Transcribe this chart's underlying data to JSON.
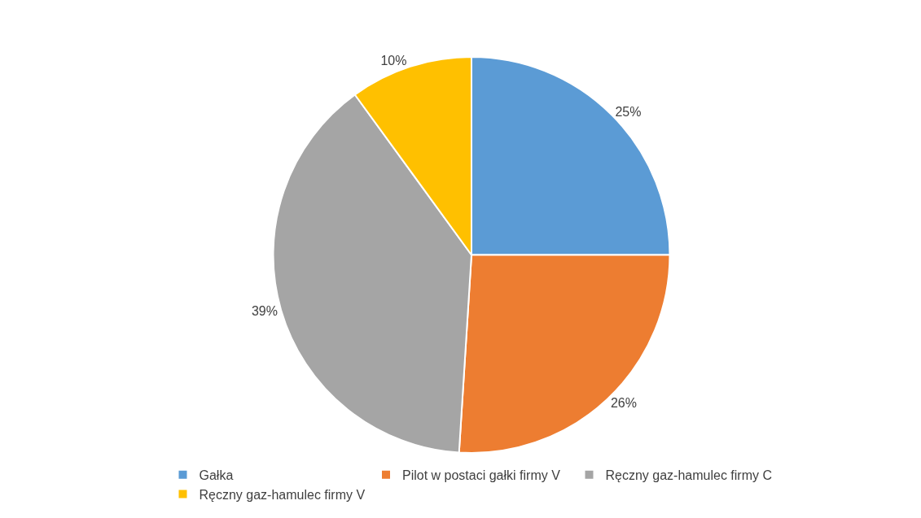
{
  "chart_data": {
    "type": "pie",
    "categories": [
      "Gałka",
      "Pilot w postaci gałki firmy V",
      "Ręczny gaz-hamulec firmy C",
      "Ręczny gaz-hamulec firmy V"
    ],
    "values": [
      25,
      26,
      39,
      10
    ],
    "colors": [
      "#5b9bd5",
      "#ed7d31",
      "#a5a5a5",
      "#ffc000"
    ],
    "value_labels": [
      "25%",
      "26%",
      "39%",
      "10%"
    ],
    "legend": "bottom"
  }
}
